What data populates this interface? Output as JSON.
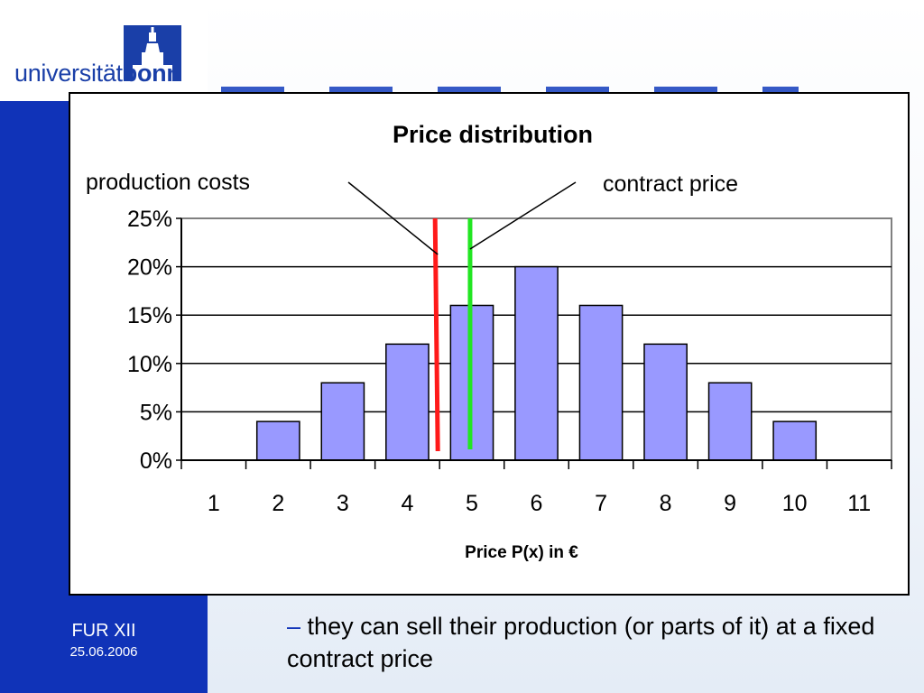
{
  "branding": {
    "logo_text_regular": "universität",
    "logo_text_bold": "bonn",
    "brand_blue": "#1033b8"
  },
  "footer": {
    "conference": "FUR XII",
    "date": "25.06.2006"
  },
  "bullet": {
    "dash": "–",
    "text": "they can sell their production (or parts of it) at a fixed contract price"
  },
  "chart_data": {
    "type": "bar",
    "title": "Price distribution",
    "xlabel": "Price P(x) in €",
    "ylabel": "",
    "categories": [
      "1",
      "2",
      "3",
      "4",
      "5",
      "6",
      "7",
      "8",
      "9",
      "10",
      "11"
    ],
    "values": [
      0,
      4,
      8,
      12,
      16,
      20,
      16,
      12,
      8,
      4,
      0
    ],
    "value_unit": "%",
    "ylim": [
      0,
      25
    ],
    "yticks": [
      0,
      5,
      10,
      15,
      20,
      25
    ],
    "ytick_labels": [
      "0%",
      "5%",
      "10%",
      "15%",
      "20%",
      "25%"
    ],
    "grid": true,
    "bar_color": "#9999ff",
    "annotations": [
      {
        "label": "production costs",
        "x": 4.5,
        "color": "#ff1a1a"
      },
      {
        "label": "contract price",
        "x": 5.0,
        "color": "#22e622"
      }
    ]
  }
}
